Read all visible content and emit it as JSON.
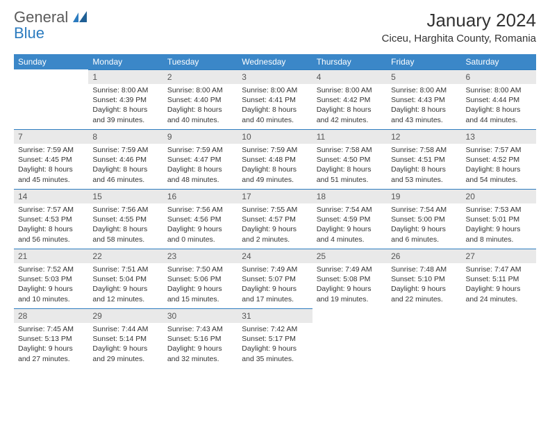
{
  "brand": {
    "part1": "General",
    "part2": "Blue"
  },
  "title": "January 2024",
  "location": "Ciceu, Harghita County, Romania",
  "colors": {
    "header_bg": "#3b87c8",
    "header_text": "#ffffff",
    "daynum_bg": "#e9e9e9",
    "daynum_border": "#2b7bbf",
    "body_text": "#333333"
  },
  "weekdays": [
    "Sunday",
    "Monday",
    "Tuesday",
    "Wednesday",
    "Thursday",
    "Friday",
    "Saturday"
  ],
  "cells": [
    {
      "n": "",
      "sr": "",
      "ss": "",
      "d1": "",
      "d2": ""
    },
    {
      "n": "1",
      "sr": "Sunrise: 8:00 AM",
      "ss": "Sunset: 4:39 PM",
      "d1": "Daylight: 8 hours",
      "d2": "and 39 minutes."
    },
    {
      "n": "2",
      "sr": "Sunrise: 8:00 AM",
      "ss": "Sunset: 4:40 PM",
      "d1": "Daylight: 8 hours",
      "d2": "and 40 minutes."
    },
    {
      "n": "3",
      "sr": "Sunrise: 8:00 AM",
      "ss": "Sunset: 4:41 PM",
      "d1": "Daylight: 8 hours",
      "d2": "and 40 minutes."
    },
    {
      "n": "4",
      "sr": "Sunrise: 8:00 AM",
      "ss": "Sunset: 4:42 PM",
      "d1": "Daylight: 8 hours",
      "d2": "and 42 minutes."
    },
    {
      "n": "5",
      "sr": "Sunrise: 8:00 AM",
      "ss": "Sunset: 4:43 PM",
      "d1": "Daylight: 8 hours",
      "d2": "and 43 minutes."
    },
    {
      "n": "6",
      "sr": "Sunrise: 8:00 AM",
      "ss": "Sunset: 4:44 PM",
      "d1": "Daylight: 8 hours",
      "d2": "and 44 minutes."
    },
    {
      "n": "7",
      "sr": "Sunrise: 7:59 AM",
      "ss": "Sunset: 4:45 PM",
      "d1": "Daylight: 8 hours",
      "d2": "and 45 minutes."
    },
    {
      "n": "8",
      "sr": "Sunrise: 7:59 AM",
      "ss": "Sunset: 4:46 PM",
      "d1": "Daylight: 8 hours",
      "d2": "and 46 minutes."
    },
    {
      "n": "9",
      "sr": "Sunrise: 7:59 AM",
      "ss": "Sunset: 4:47 PM",
      "d1": "Daylight: 8 hours",
      "d2": "and 48 minutes."
    },
    {
      "n": "10",
      "sr": "Sunrise: 7:59 AM",
      "ss": "Sunset: 4:48 PM",
      "d1": "Daylight: 8 hours",
      "d2": "and 49 minutes."
    },
    {
      "n": "11",
      "sr": "Sunrise: 7:58 AM",
      "ss": "Sunset: 4:50 PM",
      "d1": "Daylight: 8 hours",
      "d2": "and 51 minutes."
    },
    {
      "n": "12",
      "sr": "Sunrise: 7:58 AM",
      "ss": "Sunset: 4:51 PM",
      "d1": "Daylight: 8 hours",
      "d2": "and 53 minutes."
    },
    {
      "n": "13",
      "sr": "Sunrise: 7:57 AM",
      "ss": "Sunset: 4:52 PM",
      "d1": "Daylight: 8 hours",
      "d2": "and 54 minutes."
    },
    {
      "n": "14",
      "sr": "Sunrise: 7:57 AM",
      "ss": "Sunset: 4:53 PM",
      "d1": "Daylight: 8 hours",
      "d2": "and 56 minutes."
    },
    {
      "n": "15",
      "sr": "Sunrise: 7:56 AM",
      "ss": "Sunset: 4:55 PM",
      "d1": "Daylight: 8 hours",
      "d2": "and 58 minutes."
    },
    {
      "n": "16",
      "sr": "Sunrise: 7:56 AM",
      "ss": "Sunset: 4:56 PM",
      "d1": "Daylight: 9 hours",
      "d2": "and 0 minutes."
    },
    {
      "n": "17",
      "sr": "Sunrise: 7:55 AM",
      "ss": "Sunset: 4:57 PM",
      "d1": "Daylight: 9 hours",
      "d2": "and 2 minutes."
    },
    {
      "n": "18",
      "sr": "Sunrise: 7:54 AM",
      "ss": "Sunset: 4:59 PM",
      "d1": "Daylight: 9 hours",
      "d2": "and 4 minutes."
    },
    {
      "n": "19",
      "sr": "Sunrise: 7:54 AM",
      "ss": "Sunset: 5:00 PM",
      "d1": "Daylight: 9 hours",
      "d2": "and 6 minutes."
    },
    {
      "n": "20",
      "sr": "Sunrise: 7:53 AM",
      "ss": "Sunset: 5:01 PM",
      "d1": "Daylight: 9 hours",
      "d2": "and 8 minutes."
    },
    {
      "n": "21",
      "sr": "Sunrise: 7:52 AM",
      "ss": "Sunset: 5:03 PM",
      "d1": "Daylight: 9 hours",
      "d2": "and 10 minutes."
    },
    {
      "n": "22",
      "sr": "Sunrise: 7:51 AM",
      "ss": "Sunset: 5:04 PM",
      "d1": "Daylight: 9 hours",
      "d2": "and 12 minutes."
    },
    {
      "n": "23",
      "sr": "Sunrise: 7:50 AM",
      "ss": "Sunset: 5:06 PM",
      "d1": "Daylight: 9 hours",
      "d2": "and 15 minutes."
    },
    {
      "n": "24",
      "sr": "Sunrise: 7:49 AM",
      "ss": "Sunset: 5:07 PM",
      "d1": "Daylight: 9 hours",
      "d2": "and 17 minutes."
    },
    {
      "n": "25",
      "sr": "Sunrise: 7:49 AM",
      "ss": "Sunset: 5:08 PM",
      "d1": "Daylight: 9 hours",
      "d2": "and 19 minutes."
    },
    {
      "n": "26",
      "sr": "Sunrise: 7:48 AM",
      "ss": "Sunset: 5:10 PM",
      "d1": "Daylight: 9 hours",
      "d2": "and 22 minutes."
    },
    {
      "n": "27",
      "sr": "Sunrise: 7:47 AM",
      "ss": "Sunset: 5:11 PM",
      "d1": "Daylight: 9 hours",
      "d2": "and 24 minutes."
    },
    {
      "n": "28",
      "sr": "Sunrise: 7:45 AM",
      "ss": "Sunset: 5:13 PM",
      "d1": "Daylight: 9 hours",
      "d2": "and 27 minutes."
    },
    {
      "n": "29",
      "sr": "Sunrise: 7:44 AM",
      "ss": "Sunset: 5:14 PM",
      "d1": "Daylight: 9 hours",
      "d2": "and 29 minutes."
    },
    {
      "n": "30",
      "sr": "Sunrise: 7:43 AM",
      "ss": "Sunset: 5:16 PM",
      "d1": "Daylight: 9 hours",
      "d2": "and 32 minutes."
    },
    {
      "n": "31",
      "sr": "Sunrise: 7:42 AM",
      "ss": "Sunset: 5:17 PM",
      "d1": "Daylight: 9 hours",
      "d2": "and 35 minutes."
    },
    {
      "n": "",
      "sr": "",
      "ss": "",
      "d1": "",
      "d2": ""
    },
    {
      "n": "",
      "sr": "",
      "ss": "",
      "d1": "",
      "d2": ""
    },
    {
      "n": "",
      "sr": "",
      "ss": "",
      "d1": "",
      "d2": ""
    }
  ]
}
